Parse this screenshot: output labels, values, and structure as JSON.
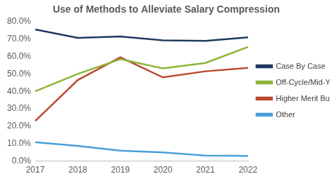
{
  "chart_data": {
    "type": "line",
    "title": "Use of Methods to Alleviate Salary Compression",
    "categories": [
      "2017",
      "2018",
      "2019",
      "2020",
      "2021",
      "2022"
    ],
    "series": [
      {
        "name": "Case By Case",
        "color": "#1f3a60",
        "values": [
          75.5,
          70.7,
          71.5,
          69.3,
          69.0,
          71.0
        ]
      },
      {
        "name": "Off-Cycle/Mid-Year Increases",
        "color": "#8db33a",
        "values": [
          40.0,
          50.0,
          58.5,
          53.2,
          56.3,
          65.5
        ]
      },
      {
        "name": "Higher Merit Budgets",
        "color": "#b94a30",
        "values": [
          23.0,
          46.5,
          59.5,
          48.0,
          51.5,
          53.5
        ]
      },
      {
        "name": "Other",
        "color": "#4a9fd8",
        "values": [
          10.8,
          8.7,
          6.0,
          5.0,
          3.2,
          3.0
        ]
      }
    ],
    "ylim": [
      0,
      80
    ],
    "yticks": [
      {
        "value": 0,
        "label": "0.0%"
      },
      {
        "value": 10,
        "label": "10.0%"
      },
      {
        "value": 20,
        "label": "20.0%"
      },
      {
        "value": 30,
        "label": "30.0%"
      },
      {
        "value": 40,
        "label": "40.0%"
      },
      {
        "value": 50,
        "label": "50.0%"
      },
      {
        "value": 60,
        "label": "60.0%"
      },
      {
        "value": 70,
        "label": "70.0%"
      },
      {
        "value": 80,
        "label": "80.0%"
      }
    ],
    "grid": false,
    "legend": "right"
  }
}
